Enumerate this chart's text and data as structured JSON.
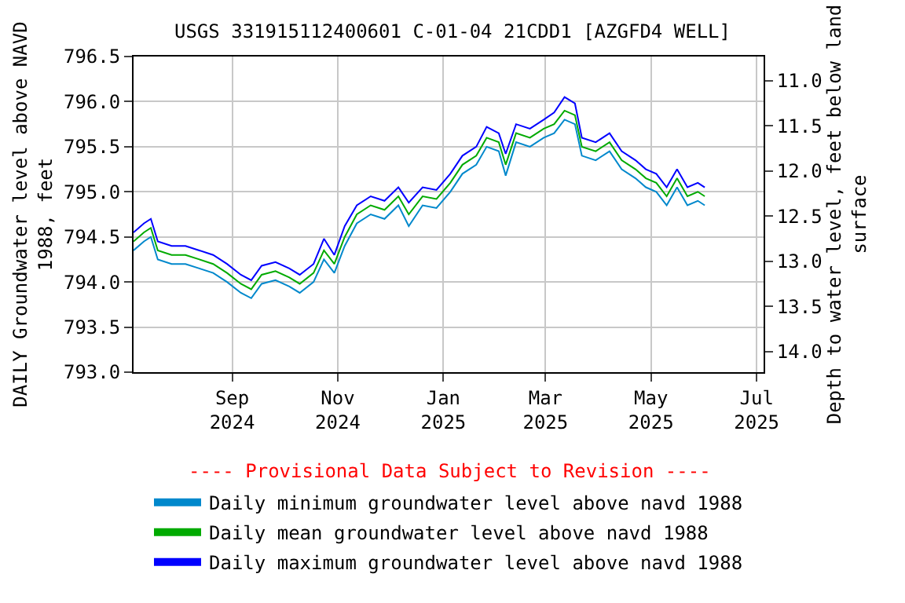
{
  "chart_data": {
    "type": "line",
    "title": "USGS 331915112400601 C-01-04 21CDD1 [AZGFD4 WELL]",
    "ylabel": "DAILY Groundwater level above NAVD\n1988, feet",
    "y2label": "Depth to water level, feet below land\nsurface",
    "annotations": [
      "---- Provisional Data Subject to Revision ----"
    ],
    "x": [
      "2024-07-06",
      "2024-07-12",
      "2024-07-16",
      "2024-07-20",
      "2024-07-28",
      "2024-08-05",
      "2024-08-13",
      "2024-08-21",
      "2024-08-29",
      "2024-09-06",
      "2024-09-12",
      "2024-09-18",
      "2024-09-26",
      "2024-10-04",
      "2024-10-10",
      "2024-10-18",
      "2024-10-24",
      "2024-10-30",
      "2024-11-05",
      "2024-11-12",
      "2024-11-20",
      "2024-11-28",
      "2024-12-06",
      "2024-12-12",
      "2024-12-20",
      "2024-12-28",
      "2025-01-05",
      "2025-01-12",
      "2025-01-20",
      "2025-01-26",
      "2025-02-02",
      "2025-02-06",
      "2025-02-12",
      "2025-02-20",
      "2025-02-28",
      "2025-03-06",
      "2025-03-12",
      "2025-03-18",
      "2025-03-22",
      "2025-03-30",
      "2025-04-07",
      "2025-04-14",
      "2025-04-22",
      "2025-04-28",
      "2025-05-04",
      "2025-05-10",
      "2025-05-16",
      "2025-05-22",
      "2025-05-28",
      "2025-06-01"
    ],
    "series": [
      {
        "name": "Daily minimum groundwater level above navd 1988",
        "color": "#0088cc",
        "values": [
          794.35,
          794.45,
          794.5,
          794.25,
          794.2,
          794.2,
          794.15,
          794.1,
          794.0,
          793.88,
          793.82,
          793.98,
          794.02,
          793.95,
          793.88,
          794.0,
          794.25,
          794.1,
          794.4,
          794.65,
          794.75,
          794.7,
          794.85,
          794.62,
          794.85,
          794.82,
          795.0,
          795.2,
          795.3,
          795.5,
          795.45,
          795.18,
          795.55,
          795.5,
          795.6,
          795.65,
          795.8,
          795.75,
          795.4,
          795.35,
          795.45,
          795.25,
          795.15,
          795.05,
          795.0,
          794.85,
          795.05,
          794.85,
          794.9,
          794.85
        ]
      },
      {
        "name": "Daily mean groundwater level above navd 1988",
        "color": "#00aa00",
        "values": [
          794.45,
          794.55,
          794.6,
          794.35,
          794.3,
          794.3,
          794.25,
          794.2,
          794.1,
          793.98,
          793.92,
          794.08,
          794.12,
          794.05,
          793.98,
          794.1,
          794.35,
          794.2,
          794.5,
          794.75,
          794.85,
          794.8,
          794.95,
          794.75,
          794.95,
          794.92,
          795.1,
          795.3,
          795.4,
          795.6,
          795.55,
          795.3,
          795.65,
          795.6,
          795.7,
          795.75,
          795.9,
          795.85,
          795.5,
          795.45,
          795.55,
          795.35,
          795.25,
          795.15,
          795.1,
          794.95,
          795.15,
          794.95,
          795.0,
          794.95
        ]
      },
      {
        "name": "Daily maximum groundwater level above navd 1988",
        "color": "#0000ff",
        "values": [
          794.55,
          794.65,
          794.7,
          794.45,
          794.4,
          794.4,
          794.35,
          794.3,
          794.2,
          794.08,
          794.02,
          794.18,
          794.22,
          794.15,
          794.08,
          794.2,
          794.48,
          794.3,
          794.62,
          794.85,
          794.95,
          794.9,
          795.05,
          794.88,
          795.05,
          795.02,
          795.2,
          795.4,
          795.5,
          795.72,
          795.65,
          795.42,
          795.75,
          795.7,
          795.8,
          795.88,
          796.05,
          795.98,
          795.6,
          795.55,
          795.65,
          795.45,
          795.35,
          795.25,
          795.2,
          795.05,
          795.25,
          795.05,
          795.1,
          795.05
        ]
      }
    ],
    "xlim": [
      "2024-07-06",
      "2025-07-05"
    ],
    "xticks": [
      {
        "value": "2024-09-01",
        "label": "Sep\n2024"
      },
      {
        "value": "2024-11-01",
        "label": "Nov\n2024"
      },
      {
        "value": "2025-01-01",
        "label": "Jan\n2025"
      },
      {
        "value": "2025-03-01",
        "label": "Mar\n2025"
      },
      {
        "value": "2025-05-01",
        "label": "May\n2025"
      },
      {
        "value": "2025-07-01",
        "label": "Jul\n2025"
      }
    ],
    "ylim": [
      793.0,
      796.5
    ],
    "yticks": [
      {
        "value": 793.0,
        "label": "793.0"
      },
      {
        "value": 793.5,
        "label": "793.5"
      },
      {
        "value": 794.0,
        "label": "794.0"
      },
      {
        "value": 794.5,
        "label": "794.5"
      },
      {
        "value": 795.0,
        "label": "795.0"
      },
      {
        "value": 795.5,
        "label": "795.5"
      },
      {
        "value": 796.0,
        "label": "796.0"
      },
      {
        "value": 796.5,
        "label": "796.5"
      }
    ],
    "y2lim": [
      14.23,
      10.73
    ],
    "y2ticks": [
      {
        "value": 11.0,
        "label": "11.0"
      },
      {
        "value": 11.5,
        "label": "11.5"
      },
      {
        "value": 12.0,
        "label": "12.0"
      },
      {
        "value": 12.5,
        "label": "12.5"
      },
      {
        "value": 13.0,
        "label": "13.0"
      },
      {
        "value": 13.5,
        "label": "13.5"
      },
      {
        "value": 14.0,
        "label": "14.0"
      }
    ],
    "grid": true,
    "legend": "bottom",
    "marker": "none",
    "line_style": "solid"
  }
}
